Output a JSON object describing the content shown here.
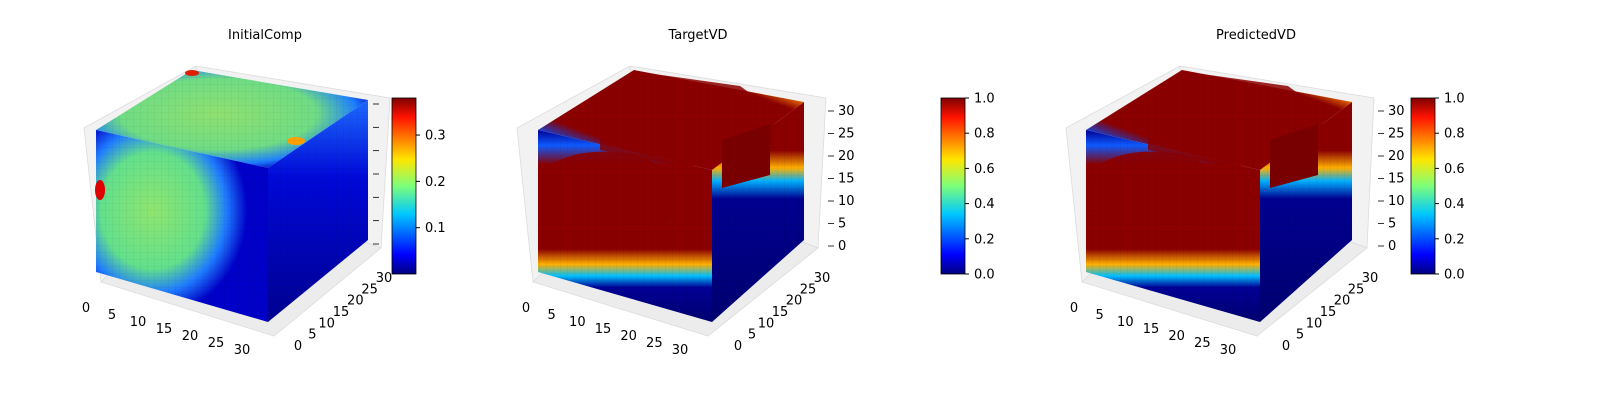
{
  "colormap": "jet",
  "chart_data": [
    {
      "type": "heatmap",
      "subtype": "3d-voxel",
      "title": "InitialComp",
      "x_ticks": [
        "0",
        "5",
        "10",
        "15",
        "20",
        "25",
        "30"
      ],
      "y_ticks": [
        "0",
        "5",
        "10",
        "15",
        "20",
        "25",
        "30"
      ],
      "z_ticks": [],
      "colorbar": {
        "ticks": [
          "0.1",
          "0.2",
          "0.3"
        ],
        "range": [
          0.0,
          0.38
        ]
      },
      "face_rendering": "cool-dominant with green region and hot spots"
    },
    {
      "type": "heatmap",
      "subtype": "3d-voxel",
      "title": "TargetVD",
      "x_ticks": [
        "0",
        "5",
        "10",
        "15",
        "20",
        "25",
        "30"
      ],
      "y_ticks": [
        "0",
        "5",
        "10",
        "15",
        "20",
        "25",
        "30"
      ],
      "z_ticks": [
        "0",
        "5",
        "10",
        "15",
        "20",
        "25",
        "30"
      ],
      "colorbar": {
        "ticks": [
          "0.0",
          "0.2",
          "0.4",
          "0.6",
          "0.8",
          "1.0"
        ],
        "range": [
          0.0,
          1.0
        ]
      },
      "face_rendering": "binary field (0 blue / 1 dark red)"
    },
    {
      "type": "heatmap",
      "subtype": "3d-voxel",
      "title": "PredictedVD",
      "x_ticks": [
        "0",
        "5",
        "10",
        "15",
        "20",
        "25",
        "30"
      ],
      "y_ticks": [
        "0",
        "5",
        "10",
        "15",
        "20",
        "25",
        "30"
      ],
      "z_ticks": [
        "0",
        "5",
        "10",
        "15",
        "20",
        "25",
        "30"
      ],
      "colorbar": {
        "ticks": [
          "0.0",
          "0.2",
          "0.4",
          "0.6",
          "0.8",
          "1.0"
        ],
        "range": [
          0.0,
          1.0
        ]
      },
      "face_rendering": "binary field (0 blue / 1 dark red)"
    }
  ]
}
